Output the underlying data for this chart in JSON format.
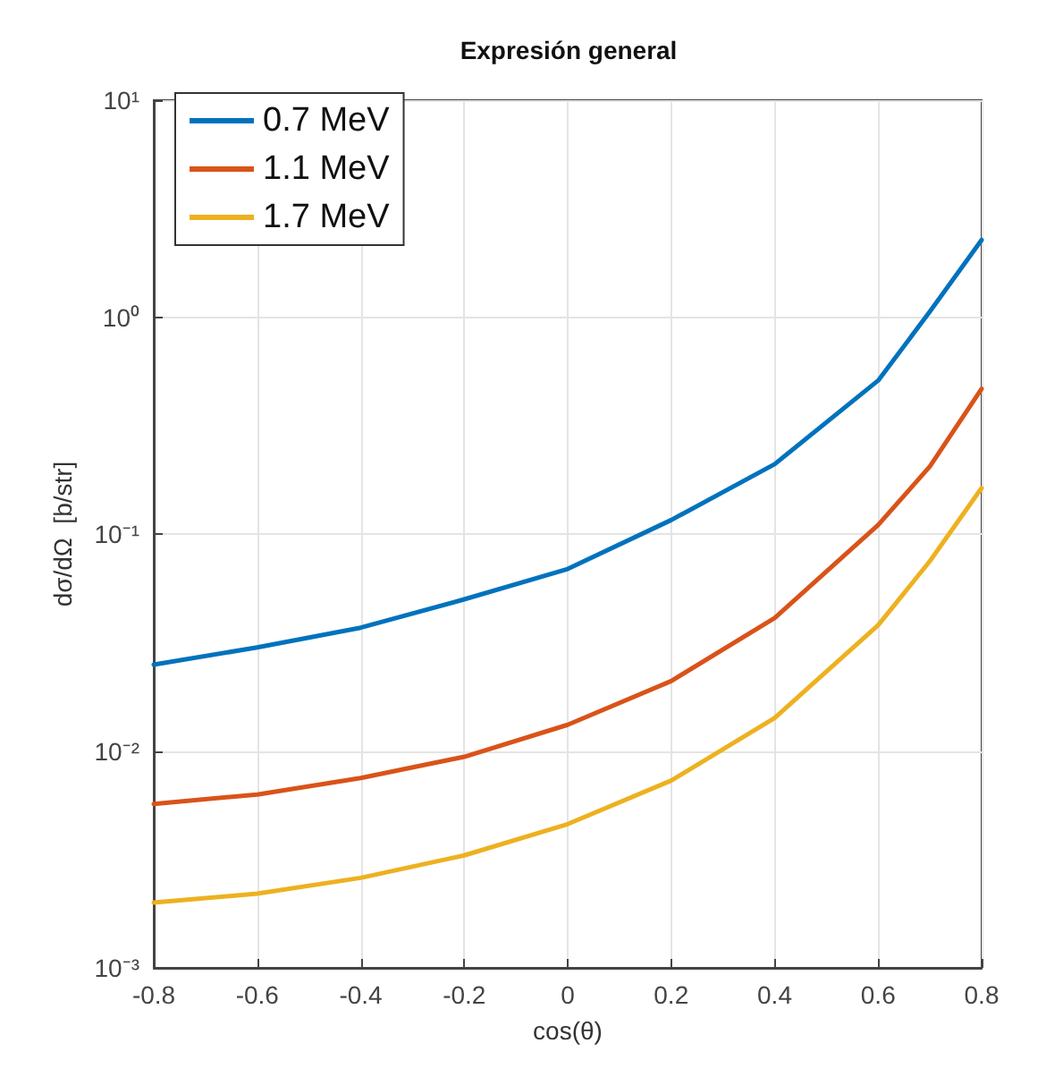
{
  "chart_data": {
    "type": "line",
    "title": "Expresión general",
    "xlabel": "cos(θ)",
    "ylabel": "dσ/dΩ  [b/str]",
    "x": [
      -0.8,
      -0.6,
      -0.4,
      -0.2,
      0,
      0.2,
      0.4,
      0.6,
      0.7,
      0.8
    ],
    "series": [
      {
        "name": "0.7 MeV",
        "color": "#0072bd",
        "values": [
          0.025,
          0.03,
          0.037,
          0.05,
          0.069,
          0.116,
          0.21,
          0.51,
          1.06,
          2.27
        ]
      },
      {
        "name": "1.1 MeV",
        "color": "#d95319",
        "values": [
          0.0057,
          0.0063,
          0.0075,
          0.0094,
          0.0132,
          0.021,
          0.041,
          0.11,
          0.205,
          0.467
        ]
      },
      {
        "name": "1.7 MeV",
        "color": "#edb120",
        "values": [
          0.002,
          0.0022,
          0.0026,
          0.0033,
          0.0046,
          0.0073,
          0.0142,
          0.038,
          0.075,
          0.163
        ]
      }
    ],
    "log": "y",
    "xlim": [
      -0.8,
      0.8
    ],
    "xticks": [
      -0.8,
      -0.6,
      -0.4,
      -0.2,
      0,
      0.2,
      0.4,
      0.6,
      0.8
    ],
    "ylim": [
      0.001,
      10
    ],
    "yticks": [
      {
        "value": 0.001,
        "label": "10⁻³"
      },
      {
        "value": 0.01,
        "label": "10⁻²"
      },
      {
        "value": 0.1,
        "label": "10⁻¹"
      },
      {
        "value": 1,
        "label": "10⁰"
      },
      {
        "value": 10,
        "label": "10¹"
      }
    ],
    "grid": true,
    "legend": "top left",
    "marker": "none",
    "line_style": "solid"
  }
}
